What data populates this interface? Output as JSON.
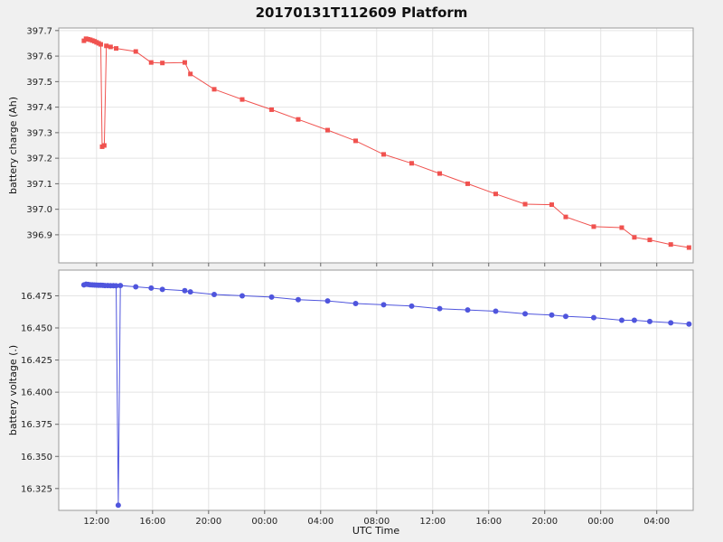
{
  "title": "20170131T112609 Platform",
  "chart_data": [
    {
      "type": "line",
      "series_name": "battery charge",
      "ylabel": "battery charge (Ah)",
      "xlabel": "",
      "color": "#f0524f",
      "marker": "square",
      "show_xtick_labels": false,
      "grid": true,
      "xlim": [
        -2.7,
        42.6
      ],
      "ylim": [
        396.79,
        397.71
      ],
      "yticks": {
        "values": [
          396.9,
          397.0,
          397.1,
          397.2,
          397.3,
          397.4,
          397.5,
          397.6,
          397.7
        ],
        "labels": [
          "396.9",
          "397.0",
          "397.1",
          "397.2",
          "397.3",
          "397.4",
          "397.5",
          "397.6",
          "397.7"
        ]
      },
      "xticks": {
        "values": [
          0,
          4,
          8,
          12,
          16,
          20,
          24,
          28,
          32,
          36,
          40
        ],
        "labels": [
          "12:00",
          "16:00",
          "20:00",
          "00:00",
          "04:00",
          "08:00",
          "12:00",
          "16:00",
          "20:00",
          "00:00",
          "04:00"
        ]
      },
      "x": [
        -0.9,
        -0.75,
        -0.6,
        -0.45,
        -0.3,
        -0.15,
        0.0,
        0.15,
        0.3,
        0.4,
        0.55,
        0.7,
        1.0,
        1.4,
        2.8,
        3.9,
        4.7,
        6.3,
        6.7,
        8.4,
        10.4,
        12.5,
        14.4,
        16.5,
        18.5,
        20.5,
        22.5,
        24.5,
        26.5,
        28.5,
        30.6,
        32.5,
        33.5,
        35.5,
        37.5,
        38.4,
        39.5,
        41.0,
        42.3
      ],
      "y": [
        397.66,
        397.668,
        397.666,
        397.664,
        397.661,
        397.658,
        397.654,
        397.65,
        397.646,
        397.245,
        397.25,
        397.64,
        397.636,
        397.63,
        397.618,
        397.575,
        397.573,
        397.575,
        397.53,
        397.47,
        397.43,
        397.39,
        397.352,
        397.31,
        397.268,
        397.215,
        397.18,
        397.14,
        397.1,
        397.06,
        397.02,
        397.018,
        396.97,
        396.932,
        396.928,
        396.89,
        396.88,
        396.862,
        396.85
      ]
    },
    {
      "type": "line",
      "series_name": "battery voltage",
      "ylabel": "battery voltage (.)",
      "xlabel": "UTC Time",
      "color": "#4f55dd",
      "marker": "circle",
      "show_xtick_labels": true,
      "grid": true,
      "xlim": [
        -2.7,
        42.6
      ],
      "ylim": [
        16.308,
        16.495
      ],
      "yticks": {
        "values": [
          16.325,
          16.35,
          16.375,
          16.4,
          16.425,
          16.45,
          16.475
        ],
        "labels": [
          "16.325",
          "16.350",
          "16.375",
          "16.400",
          "16.425",
          "16.450",
          "16.475"
        ]
      },
      "xticks": {
        "values": [
          0,
          4,
          8,
          12,
          16,
          20,
          24,
          28,
          32,
          36,
          40
        ],
        "labels": [
          "12:00",
          "16:00",
          "20:00",
          "00:00",
          "04:00",
          "08:00",
          "12:00",
          "16:00",
          "20:00",
          "00:00",
          "04:00"
        ]
      },
      "x": [
        -0.9,
        -0.75,
        -0.6,
        -0.45,
        -0.3,
        -0.15,
        0.0,
        0.15,
        0.3,
        0.45,
        0.6,
        0.8,
        1.0,
        1.2,
        1.4,
        1.55,
        1.7,
        2.8,
        3.9,
        4.7,
        6.3,
        6.7,
        8.4,
        10.4,
        12.5,
        14.4,
        16.5,
        18.5,
        20.5,
        22.5,
        24.5,
        26.5,
        28.5,
        30.6,
        32.5,
        33.5,
        35.5,
        37.5,
        38.4,
        39.5,
        41.0,
        42.3
      ],
      "y": [
        16.4835,
        16.484,
        16.4838,
        16.4836,
        16.4835,
        16.4834,
        16.4833,
        16.4832,
        16.4832,
        16.4831,
        16.483,
        16.483,
        16.4829,
        16.4829,
        16.4828,
        16.312,
        16.483,
        16.482,
        16.481,
        16.48,
        16.479,
        16.478,
        16.476,
        16.475,
        16.474,
        16.472,
        16.471,
        16.469,
        16.468,
        16.467,
        16.465,
        16.464,
        16.463,
        16.461,
        16.46,
        16.459,
        16.458,
        16.456,
        16.456,
        16.455,
        16.454,
        16.453
      ]
    }
  ]
}
